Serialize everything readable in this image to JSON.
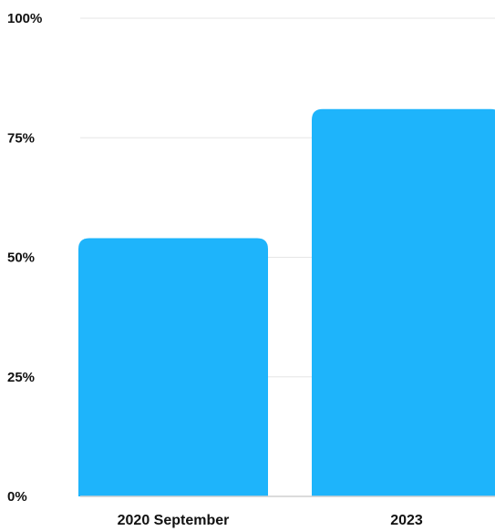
{
  "chart_data": {
    "type": "bar",
    "title": "",
    "xlabel": "",
    "ylabel": "",
    "categories": [
      "2020 September",
      "2023"
    ],
    "values": [
      54,
      81
    ],
    "ylim": [
      0,
      100
    ],
    "y_ticks": [
      0,
      25,
      50,
      75,
      100
    ],
    "y_tick_labels": [
      "0%",
      "25%",
      "50%",
      "75%",
      "100%"
    ],
    "grid": true,
    "legend": "none",
    "colors": {
      "bar": "#1eb4fb",
      "grid": "#e6e6e6",
      "axis": "#cfcfcf",
      "text": "#111111"
    }
  }
}
